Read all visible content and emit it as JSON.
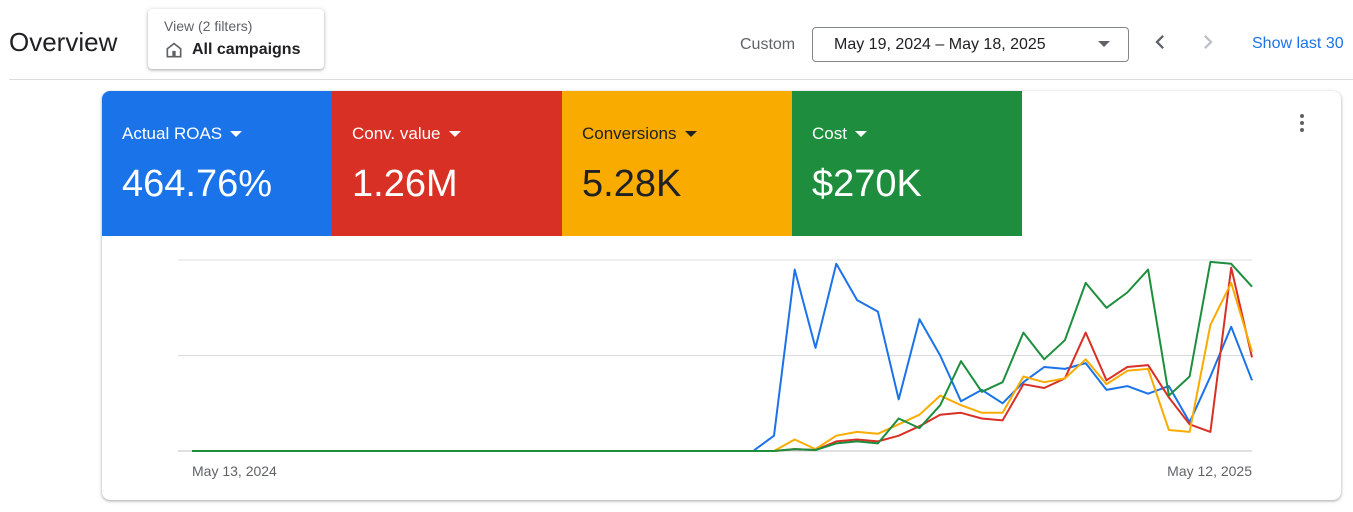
{
  "header": {
    "title": "Overview",
    "view_filter": {
      "label": "View (2 filters)",
      "value": "All campaigns",
      "icon": "home-icon"
    },
    "date_mode": "Custom",
    "date_range": "May 19, 2024 – May 18, 2025",
    "show_last": "Show last 30"
  },
  "metrics": [
    {
      "label": "Actual ROAS",
      "value": "464.76%",
      "color": "#1a73e8",
      "text_color": "#ffffff"
    },
    {
      "label": "Conv. value",
      "value": "1.26M",
      "color": "#d93025",
      "text_color": "#ffffff"
    },
    {
      "label": "Conversions",
      "value": "5.28K",
      "color": "#f9ab00",
      "text_color": "#202124"
    },
    {
      "label": "Cost",
      "value": "$270K",
      "color": "#1e8e3e",
      "text_color": "#ffffff"
    }
  ],
  "chart_data": {
    "type": "line",
    "x_start_label": "May 13, 2024",
    "x_end_label": "May 12, 2025",
    "grid": true,
    "y_axis_labels_shown": false,
    "ylim": [
      0,
      1
    ],
    "series": [
      {
        "name": "Actual ROAS",
        "color": "#1a73e8",
        "values": [
          0,
          0,
          0,
          0,
          0,
          0,
          0,
          0,
          0,
          0,
          0,
          0,
          0,
          0,
          0,
          0,
          0,
          0,
          0,
          0,
          0,
          0,
          0,
          0,
          0,
          0,
          0,
          0,
          0.08,
          0.95,
          0.54,
          0.98,
          0.79,
          0.73,
          0.27,
          0.69,
          0.5,
          0.26,
          0.32,
          0.25,
          0.36,
          0.44,
          0.43,
          0.46,
          0.32,
          0.34,
          0.3,
          0.34,
          0.15,
          0.39,
          0.65,
          0.37
        ]
      },
      {
        "name": "Conv. value",
        "color": "#d93025",
        "values": [
          0,
          0,
          0,
          0,
          0,
          0,
          0,
          0,
          0,
          0,
          0,
          0,
          0,
          0,
          0,
          0,
          0,
          0,
          0,
          0,
          0,
          0,
          0,
          0,
          0,
          0,
          0,
          0,
          0,
          0.01,
          0.005,
          0.05,
          0.06,
          0.05,
          0.08,
          0.13,
          0.19,
          0.2,
          0.17,
          0.16,
          0.35,
          0.33,
          0.38,
          0.62,
          0.37,
          0.44,
          0.45,
          0.28,
          0.14,
          0.1,
          0.96,
          0.49
        ]
      },
      {
        "name": "Conversions",
        "color": "#f9ab00",
        "values": [
          0,
          0,
          0,
          0,
          0,
          0,
          0,
          0,
          0,
          0,
          0,
          0,
          0,
          0,
          0,
          0,
          0,
          0,
          0,
          0,
          0,
          0,
          0,
          0,
          0,
          0,
          0,
          0,
          0,
          0.06,
          0.01,
          0.08,
          0.1,
          0.09,
          0.14,
          0.19,
          0.29,
          0.24,
          0.2,
          0.2,
          0.39,
          0.36,
          0.38,
          0.48,
          0.35,
          0.42,
          0.43,
          0.11,
          0.1,
          0.66,
          0.88,
          0.52
        ]
      },
      {
        "name": "Cost",
        "color": "#1e8e3e",
        "values": [
          0,
          0,
          0,
          0,
          0,
          0,
          0,
          0,
          0,
          0,
          0,
          0,
          0,
          0,
          0,
          0,
          0,
          0,
          0,
          0,
          0,
          0,
          0,
          0,
          0,
          0,
          0,
          0,
          0,
          0.01,
          0.005,
          0.04,
          0.05,
          0.04,
          0.17,
          0.12,
          0.24,
          0.47,
          0.31,
          0.36,
          0.62,
          0.48,
          0.58,
          0.88,
          0.75,
          0.83,
          0.95,
          0.29,
          0.39,
          0.99,
          0.98,
          0.86
        ]
      }
    ]
  }
}
